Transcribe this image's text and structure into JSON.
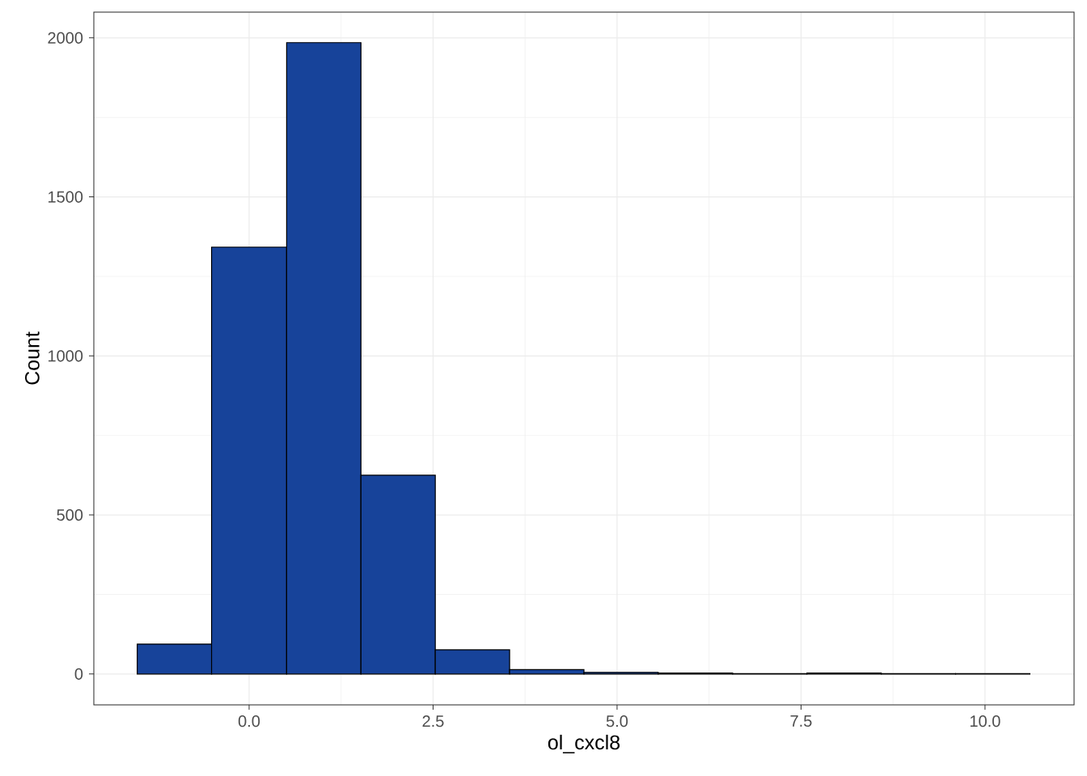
{
  "chart_data": {
    "type": "histogram",
    "xlabel": "ol_cxcl8",
    "ylabel": "Count",
    "color": "#17439a",
    "bins": [
      -1.52,
      -0.51,
      0.51,
      1.52,
      2.53,
      3.54,
      4.55,
      5.56,
      6.57,
      7.58,
      8.59,
      9.6,
      10.61
    ],
    "values": [
      94,
      1342,
      1985,
      625,
      76,
      14,
      5,
      3,
      1,
      3,
      1,
      1
    ],
    "xlim": [
      -2.11,
      11.21
    ],
    "ylim": [
      -97,
      2081
    ],
    "xticks": [
      {
        "value": 0,
        "label": "0.0"
      },
      2.5,
      {
        "value": 5,
        "label": "5.0"
      },
      7.5,
      {
        "value": 10,
        "label": "10.0"
      }
    ],
    "yticks": [
      0,
      500,
      1000,
      1500,
      2000
    ],
    "grid": true
  }
}
